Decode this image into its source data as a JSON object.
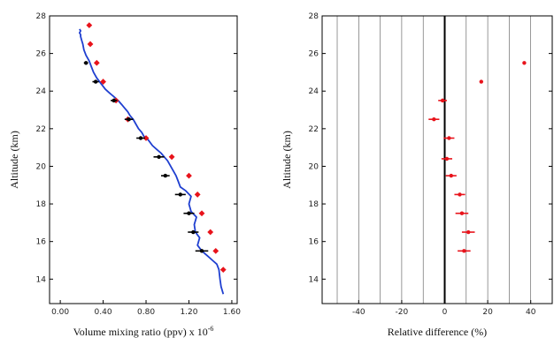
{
  "chart_data": [
    {
      "type": "line",
      "xlabel": "Volume mixing ratio (ppv) x 10",
      "xlabel_exponent": "-6",
      "ylabel": "Altitude (km)",
      "xlim": [
        -0.1,
        1.65
      ],
      "ylim": [
        12.7,
        28
      ],
      "x_ticks": [
        "0.00",
        "0.40",
        "0.80",
        "1.20",
        "1.60"
      ],
      "x_tick_values": [
        0.0,
        0.4,
        0.8,
        1.2,
        1.6
      ],
      "y_ticks": [
        "14",
        "16",
        "18",
        "20",
        "22",
        "24",
        "26",
        "28"
      ],
      "y_tick_values": [
        14,
        16,
        18,
        20,
        22,
        24,
        26,
        28
      ],
      "grid": false,
      "series": [
        {
          "type": "line",
          "color": "#1f3fd0",
          "x": [
            1.52,
            1.5,
            1.49,
            1.48,
            1.46,
            1.42,
            1.38,
            1.32,
            1.28,
            1.3,
            1.26,
            1.25,
            1.27,
            1.22,
            1.2,
            1.22,
            1.17,
            1.12,
            1.1,
            1.08,
            1.05,
            1.02,
            1.0,
            0.97,
            0.94,
            0.9,
            0.86,
            0.82,
            0.78,
            0.76,
            0.73,
            0.7,
            0.68,
            0.65,
            0.63,
            0.6,
            0.57,
            0.54,
            0.5,
            0.46,
            0.42,
            0.38,
            0.34,
            0.31,
            0.29,
            0.27,
            0.24,
            0.22,
            0.21,
            0.2,
            0.19,
            0.19,
            0.18,
            0.19,
            0.18
          ],
          "y": [
            13.2,
            13.6,
            14.0,
            14.5,
            14.8,
            15.0,
            15.2,
            15.5,
            15.8,
            16.2,
            16.5,
            16.9,
            17.3,
            17.6,
            18.0,
            18.4,
            18.7,
            18.9,
            19.2,
            19.5,
            19.8,
            20.1,
            20.3,
            20.5,
            20.7,
            20.9,
            21.1,
            21.4,
            21.6,
            21.8,
            22.0,
            22.3,
            22.5,
            22.7,
            22.9,
            23.1,
            23.3,
            23.5,
            23.7,
            23.9,
            24.1,
            24.4,
            24.7,
            25.0,
            25.3,
            25.6,
            25.9,
            26.2,
            26.5,
            26.7,
            26.9,
            27.0,
            27.1,
            27.2,
            27.3
          ]
        },
        {
          "type": "scatter",
          "marker": "diamond",
          "color": "#e8131b",
          "x": [
            1.52,
            1.45,
            1.4,
            1.32,
            1.28,
            1.2,
            1.04,
            0.8,
            0.63,
            0.52,
            0.4,
            0.34,
            0.28,
            0.27
          ],
          "y": [
            14.5,
            15.5,
            16.5,
            17.5,
            18.5,
            19.5,
            20.5,
            21.5,
            22.5,
            23.5,
            24.5,
            25.5,
            26.5,
            27.5
          ]
        },
        {
          "type": "errorbar",
          "color": "#000000",
          "x": [
            1.32,
            1.24,
            1.2,
            1.12,
            0.98,
            0.92,
            0.75,
            0.64,
            0.5,
            0.33,
            0.24
          ],
          "xerr": [
            0.06,
            0.05,
            0.05,
            0.05,
            0.04,
            0.05,
            0.04,
            0.04,
            0.03,
            0.03,
            0.02
          ],
          "y": [
            15.5,
            16.5,
            17.5,
            18.5,
            19.5,
            20.5,
            21.5,
            22.5,
            23.5,
            24.5,
            25.5
          ]
        }
      ]
    },
    {
      "type": "scatter",
      "xlabel": "Relative difference (%)",
      "ylabel": "Altitude (km)",
      "xlim": [
        -57,
        50
      ],
      "ylim": [
        12.7,
        28
      ],
      "x_ticks": [
        "-40",
        "-20",
        "0",
        "20",
        "40"
      ],
      "x_tick_values": [
        -40,
        -20,
        0,
        20,
        40
      ],
      "y_ticks": [
        "14",
        "16",
        "18",
        "20",
        "22",
        "24",
        "26",
        "28"
      ],
      "y_tick_values": [
        14,
        16,
        18,
        20,
        22,
        24,
        26,
        28
      ],
      "grid": true,
      "grid_lines_x": [
        -50,
        -40,
        -30,
        -20,
        -10,
        10,
        20,
        30,
        40
      ],
      "zero_line": 0,
      "series": [
        {
          "type": "errorbar",
          "color": "#e8131b",
          "x": [
            9,
            11,
            8,
            7,
            3,
            1,
            2,
            -5,
            -1,
            17,
            37
          ],
          "xerr": [
            3,
            3,
            3,
            2.5,
            2.5,
            2.5,
            2.5,
            2.5,
            2,
            0,
            0
          ],
          "y": [
            15.5,
            16.5,
            17.5,
            18.5,
            19.5,
            20.4,
            21.5,
            22.5,
            23.5,
            24.5,
            25.5
          ]
        }
      ]
    }
  ]
}
